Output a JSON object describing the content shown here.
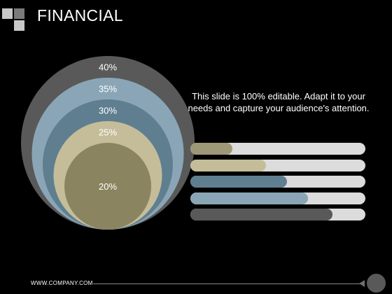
{
  "slide": {
    "title": "FINANCIAL",
    "description": "This slide is 100% editable. Adapt it to your needs and capture your audience's attention.",
    "footer": "WWW.COMPANY.COM"
  },
  "colors": {
    "background": "#000000",
    "logo_light": "#c8c8c8",
    "logo_dark": "#7a7a7a",
    "bar_track": "#dcdcdc"
  },
  "chart_data": [
    {
      "type": "nested-circles",
      "title": "",
      "values": [
        40,
        35,
        30,
        25,
        20
      ],
      "labels": [
        "40%",
        "35%",
        "30%",
        "25%",
        "20%"
      ],
      "colors": [
        "#595959",
        "#8aa6b6",
        "#5f7f90",
        "#c5bd9a",
        "#8a8560"
      ]
    },
    {
      "type": "bar",
      "orientation": "horizontal",
      "title": "",
      "values": [
        24,
        43,
        55,
        67,
        81
      ],
      "xlim": [
        0,
        100
      ],
      "colors": [
        "#9e9878",
        "#c5bd9a",
        "#5f7f90",
        "#8aa6b6",
        "#595959"
      ]
    }
  ]
}
